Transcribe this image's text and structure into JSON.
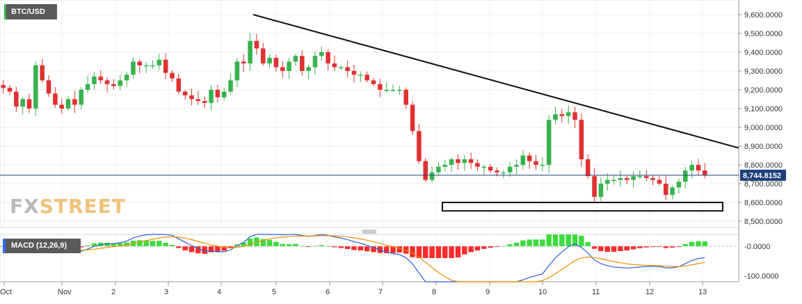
{
  "header": {
    "pair": "BTC/USD"
  },
  "logo": {
    "prefix": "FX",
    "suffix": "STREET"
  },
  "indicator": {
    "label": "MACD (12,26,9)"
  },
  "colors": {
    "up": "#37b24d",
    "down": "#e03131",
    "trendline": "#111111",
    "price_line": "#1c3f7a",
    "macd_line": "#2f5bd8",
    "signal_line": "#f08c00",
    "hist_up": "#3ddc3d",
    "hist_down": "#ff2a2a"
  },
  "chart_data": {
    "type": "candlestick",
    "x_ticks": [
      "Oct",
      "Nov",
      "2",
      "3",
      "4",
      "5",
      "6",
      "7",
      "8",
      "9",
      "10",
      "11",
      "12",
      "13"
    ],
    "y_ticks": [
      "9,600.0000",
      "9,500.0000",
      "9,400.0000",
      "9,300.0000",
      "9,200.0000",
      "9,100.0000",
      "9,000.0000",
      "8,900.0000",
      "8,800.0000",
      "8,700.0000",
      "8,600.0000",
      "8,500.0000"
    ],
    "ylim": [
      8450,
      9665
    ],
    "current_price": "8,744.8152",
    "current_price_value": 8744.8152,
    "closes": [
      9210,
      9190,
      9110,
      9150,
      9100,
      9330,
      9250,
      9180,
      9120,
      9100,
      9150,
      9120,
      9200,
      9230,
      9270,
      9250,
      9230,
      9220,
      9250,
      9280,
      9350,
      9330,
      9330,
      9330,
      9360,
      9290,
      9260,
      9190,
      9170,
      9150,
      9140,
      9130,
      9200,
      9160,
      9190,
      9250,
      9350,
      9340,
      9460,
      9420,
      9340,
      9370,
      9320,
      9300,
      9350,
      9380,
      9300,
      9320,
      9380,
      9400,
      9340,
      9320,
      9320,
      9300,
      9280,
      9280,
      9250,
      9230,
      9200,
      9200,
      9200,
      9200,
      9120,
      8980,
      8820,
      8720,
      8760,
      8790,
      8800,
      8830,
      8810,
      8830,
      8810,
      8790,
      8790,
      8770,
      8760,
      8760,
      8790,
      8800,
      8850,
      8820,
      8800,
      8800,
      9040,
      9070,
      9060,
      9080,
      9040,
      8830,
      8740,
      8630,
      8700,
      8720,
      8720,
      8730,
      8720,
      8740,
      8740,
      8730,
      8720,
      8700,
      8640,
      8680,
      8710,
      8770,
      8800,
      8770,
      8745
    ],
    "x_start": 0,
    "x_end": 1018,
    "macd_labels": [
      "-0.0000",
      "-100.0000"
    ],
    "macd_ylim": [
      -120,
      40
    ],
    "annotations": [
      "descending trendline",
      "support zone"
    ]
  }
}
